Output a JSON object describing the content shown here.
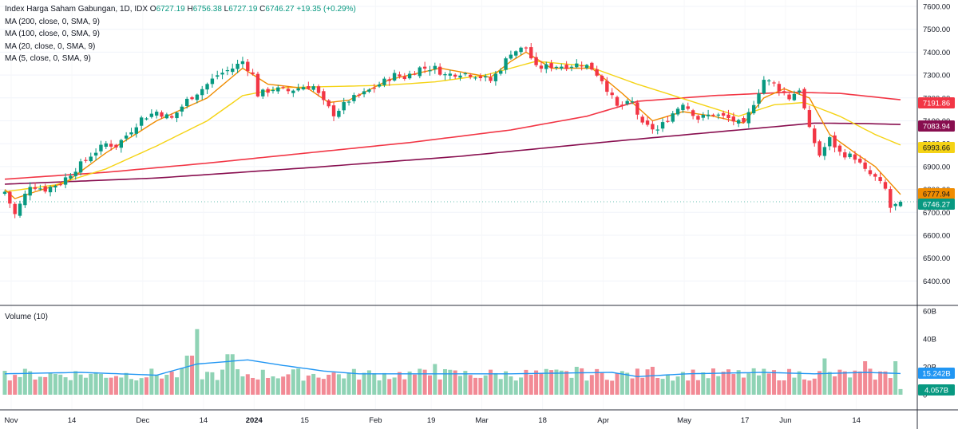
{
  "legend": {
    "symbol": "Index Harga Saham Gabungan, 1D, IDX",
    "open_label": "O",
    "open": "6727.19",
    "high_label": "H",
    "high": "6756.38",
    "low_label": "L",
    "low": "6727.19",
    "close_label": "C",
    "close": "6746.27",
    "change": "+19.35 (+0.29%)",
    "ma_lines": [
      "MA (200, close, 0, SMA, 9)",
      "MA (100, close, 0, SMA, 9)",
      "MA (20, close, 0, SMA, 9)",
      "MA (5, close, 0, SMA, 9)"
    ]
  },
  "volume_legend": "Volume (10)",
  "colors": {
    "up": "#089981",
    "down": "#f23645",
    "up_fill": "#8fd3b5",
    "down_fill": "#f28a95",
    "ma200": "#880e4f",
    "ma100": "#f23645",
    "ma20": "#f5d315",
    "ma5": "#f08c00",
    "vol_ma": "#2196f3"
  },
  "chart_data": {
    "type": "candlestick",
    "price_axis": {
      "ticks": [
        "7600.00",
        "7500.00",
        "7400.00",
        "7300.00",
        "7200.00",
        "7100.00",
        "7000.00",
        "6900.00",
        "6800.00",
        "6700.00",
        "6600.00",
        "6500.00",
        "6400.00"
      ],
      "range": [
        6345,
        7620
      ]
    },
    "volume_axis": {
      "ticks": [
        "60B",
        "40B",
        "20B",
        "0"
      ],
      "range": [
        0,
        60
      ]
    },
    "date_labels": [
      "Nov",
      "14",
      "Dec",
      "14",
      "2024",
      "15",
      "Feb",
      "19",
      "Mar",
      "18",
      "Apr",
      "May",
      "17",
      "Jun",
      "14"
    ],
    "price_tags": [
      {
        "label": "7191.86",
        "value": 7191.86,
        "color": "#f23645",
        "text_color": "#ffffff",
        "series": "ma100"
      },
      {
        "label": "7083.94",
        "value": 7083.94,
        "color": "#880e4f",
        "text_color": "#ffffff",
        "series": "ma200"
      },
      {
        "label": "6993.66",
        "value": 6993.66,
        "color": "#f5d315",
        "text_color": "#131722",
        "series": "ma20"
      },
      {
        "label": "6777.94",
        "value": 6777.94,
        "color": "#f08c00",
        "text_color": "#131722",
        "series": "ma5"
      },
      {
        "label": "6746.27",
        "value": 6746.27,
        "color": "#089981",
        "text_color": "#ffffff",
        "series": "close"
      }
    ],
    "volume_tags": [
      {
        "label": "15.242B",
        "value": 15.242,
        "color": "#2196f3",
        "text_color": "#ffffff"
      },
      {
        "label": "4.057B",
        "value": 4.057,
        "color": "#089981",
        "text_color": "#ffffff"
      }
    ],
    "price_anchors": [
      [
        0,
        6790
      ],
      [
        2,
        6690
      ],
      [
        5,
        6820
      ],
      [
        8,
        6800
      ],
      [
        11,
        6830
      ],
      [
        14,
        6890
      ],
      [
        17,
        6950
      ],
      [
        20,
        7000
      ],
      [
        22,
        6990
      ],
      [
        25,
        7060
      ],
      [
        27,
        7110
      ],
      [
        30,
        7140
      ],
      [
        33,
        7110
      ],
      [
        36,
        7190
      ],
      [
        39,
        7240
      ],
      [
        42,
        7300
      ],
      [
        45,
        7330
      ],
      [
        47,
        7360
      ],
      [
        49,
        7300
      ],
      [
        50,
        7215
      ],
      [
        53,
        7240
      ],
      [
        56,
        7230
      ],
      [
        59,
        7250
      ],
      [
        61,
        7250
      ],
      [
        63,
        7180
      ],
      [
        65,
        7130
      ],
      [
        68,
        7190
      ],
      [
        71,
        7220
      ],
      [
        74,
        7260
      ],
      [
        77,
        7300
      ],
      [
        79,
        7290
      ],
      [
        82,
        7330
      ],
      [
        85,
        7330
      ],
      [
        87,
        7300
      ],
      [
        90,
        7310
      ],
      [
        93,
        7300
      ],
      [
        96,
        7275
      ],
      [
        98,
        7330
      ],
      [
        100,
        7400
      ],
      [
        103,
        7420
      ],
      [
        105,
        7330
      ],
      [
        108,
        7340
      ],
      [
        111,
        7340
      ],
      [
        114,
        7350
      ],
      [
        116,
        7330
      ],
      [
        118,
        7280
      ],
      [
        121,
        7160
      ],
      [
        124,
        7180
      ],
      [
        126,
        7080
      ],
      [
        129,
        7060
      ],
      [
        131,
        7110
      ],
      [
        134,
        7180
      ],
      [
        137,
        7110
      ],
      [
        140,
        7130
      ],
      [
        143,
        7110
      ],
      [
        146,
        7080
      ],
      [
        148,
        7180
      ],
      [
        150,
        7280
      ],
      [
        152,
        7260
      ],
      [
        155,
        7200
      ],
      [
        157,
        7240
      ],
      [
        159,
        7060
      ],
      [
        161,
        6950
      ],
      [
        163,
        7020
      ],
      [
        165,
        6960
      ],
      [
        168,
        6940
      ],
      [
        170,
        6880
      ],
      [
        172,
        6850
      ],
      [
        174,
        6800
      ],
      [
        175,
        6720
      ],
      [
        176,
        6730
      ],
      [
        177,
        6746
      ]
    ],
    "ma_anchors": {
      "ma200": [
        [
          0,
          6823
        ],
        [
          30,
          6850
        ],
        [
          60,
          6895
        ],
        [
          90,
          6945
        ],
        [
          120,
          7010
        ],
        [
          150,
          7070
        ],
        [
          160,
          7090
        ],
        [
          170,
          7088
        ],
        [
          177,
          7084
        ]
      ],
      "ma100": [
        [
          0,
          6845
        ],
        [
          20,
          6875
        ],
        [
          40,
          6915
        ],
        [
          60,
          6960
        ],
        [
          80,
          7005
        ],
        [
          100,
          7060
        ],
        [
          115,
          7120
        ],
        [
          125,
          7185
        ],
        [
          140,
          7210
        ],
        [
          155,
          7225
        ],
        [
          165,
          7220
        ],
        [
          177,
          7192
        ]
      ],
      "ma20": [
        [
          0,
          6790
        ],
        [
          10,
          6820
        ],
        [
          20,
          6890
        ],
        [
          30,
          6990
        ],
        [
          40,
          7100
        ],
        [
          47,
          7210
        ],
        [
          55,
          7245
        ],
        [
          65,
          7250
        ],
        [
          75,
          7255
        ],
        [
          85,
          7270
        ],
        [
          95,
          7300
        ],
        [
          105,
          7360
        ],
        [
          115,
          7340
        ],
        [
          125,
          7260
        ],
        [
          135,
          7190
        ],
        [
          145,
          7120
        ],
        [
          152,
          7170
        ],
        [
          158,
          7180
        ],
        [
          165,
          7120
        ],
        [
          172,
          7040
        ],
        [
          177,
          6994
        ]
      ],
      "ma5": [
        [
          0,
          6800
        ],
        [
          2,
          6760
        ],
        [
          6,
          6790
        ],
        [
          12,
          6830
        ],
        [
          20,
          6960
        ],
        [
          30,
          7100
        ],
        [
          40,
          7200
        ],
        [
          47,
          7330
        ],
        [
          52,
          7260
        ],
        [
          60,
          7240
        ],
        [
          64,
          7180
        ],
        [
          68,
          7190
        ],
        [
          76,
          7280
        ],
        [
          86,
          7330
        ],
        [
          96,
          7290
        ],
        [
          100,
          7360
        ],
        [
          103,
          7400
        ],
        [
          108,
          7330
        ],
        [
          116,
          7330
        ],
        [
          122,
          7220
        ],
        [
          128,
          7100
        ],
        [
          134,
          7140
        ],
        [
          140,
          7120
        ],
        [
          146,
          7090
        ],
        [
          150,
          7200
        ],
        [
          154,
          7240
        ],
        [
          159,
          7200
        ],
        [
          163,
          7040
        ],
        [
          168,
          6960
        ],
        [
          172,
          6900
        ],
        [
          177,
          6778
        ]
      ]
    },
    "volume_ma_anchors": [
      [
        0,
        15
      ],
      [
        15,
        16
      ],
      [
        30,
        14
      ],
      [
        38,
        22
      ],
      [
        48,
        25
      ],
      [
        55,
        21
      ],
      [
        63,
        17
      ],
      [
        70,
        15
      ],
      [
        100,
        15
      ],
      [
        120,
        16
      ],
      [
        125,
        13
      ],
      [
        135,
        15
      ],
      [
        150,
        16
      ],
      [
        160,
        15
      ],
      [
        170,
        16
      ],
      [
        177,
        15.2
      ]
    ],
    "volume_spikes": [
      [
        38,
        47
      ],
      [
        36,
        28
      ],
      [
        37,
        28
      ],
      [
        44,
        29
      ],
      [
        45,
        29
      ],
      [
        85,
        22
      ],
      [
        113,
        20
      ],
      [
        128,
        20
      ],
      [
        162,
        26
      ],
      [
        170,
        24
      ],
      [
        176,
        24
      ]
    ],
    "last_volume": 4.057
  }
}
